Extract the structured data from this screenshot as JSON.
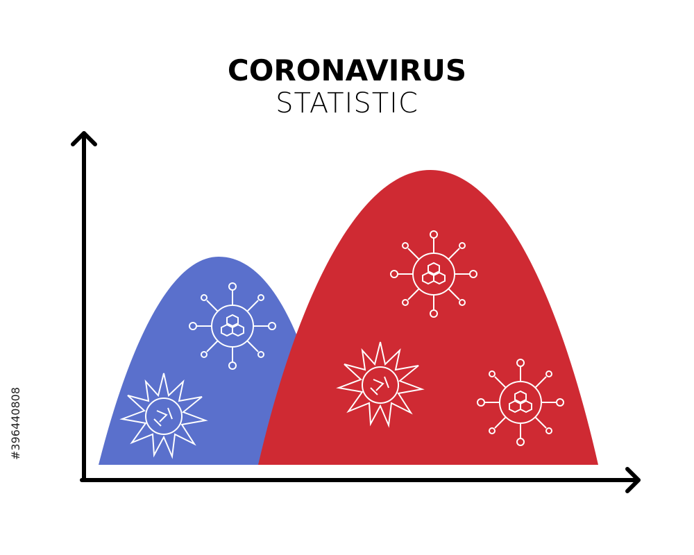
{
  "title": {
    "main": "CORONAVIRUS",
    "sub": "STATISTIC"
  },
  "watermark": {
    "id": "#396440808"
  }
}
